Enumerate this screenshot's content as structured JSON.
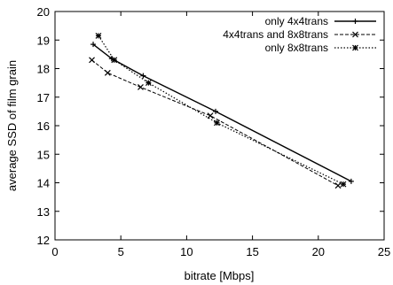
{
  "chart_data": {
    "type": "line",
    "xlabel": "bitrate [Mbps]",
    "ylabel": "average SSD of film grain",
    "xlim": [
      0,
      25
    ],
    "ylim": [
      12,
      20
    ],
    "xticks": [
      "0",
      "5",
      "10",
      "15",
      "20",
      "25"
    ],
    "yticks": [
      "12",
      "13",
      "14",
      "15",
      "16",
      "17",
      "18",
      "19",
      "20"
    ],
    "grid": false,
    "legend_position": "top-right",
    "series": [
      {
        "name": "only 4x4trans",
        "line_style": "solid",
        "marker": "plus",
        "color": "#000000",
        "x": [
          2.9,
          4.3,
          6.7,
          12.2,
          22.5
        ],
        "y": [
          18.85,
          18.35,
          17.75,
          16.5,
          14.05
        ]
      },
      {
        "name": "4x4trans and 8x8trans",
        "line_style": "dashed",
        "marker": "x",
        "color": "#000000",
        "x": [
          2.8,
          4.0,
          6.5,
          11.8,
          21.5
        ],
        "y": [
          18.3,
          17.85,
          17.35,
          16.35,
          13.9
        ]
      },
      {
        "name": "only 8x8trans",
        "line_style": "dotted",
        "marker": "star",
        "color": "#000000",
        "x": [
          3.3,
          4.5,
          7.1,
          12.3,
          21.9
        ],
        "y": [
          19.15,
          18.3,
          17.5,
          16.1,
          13.95
        ]
      }
    ]
  }
}
